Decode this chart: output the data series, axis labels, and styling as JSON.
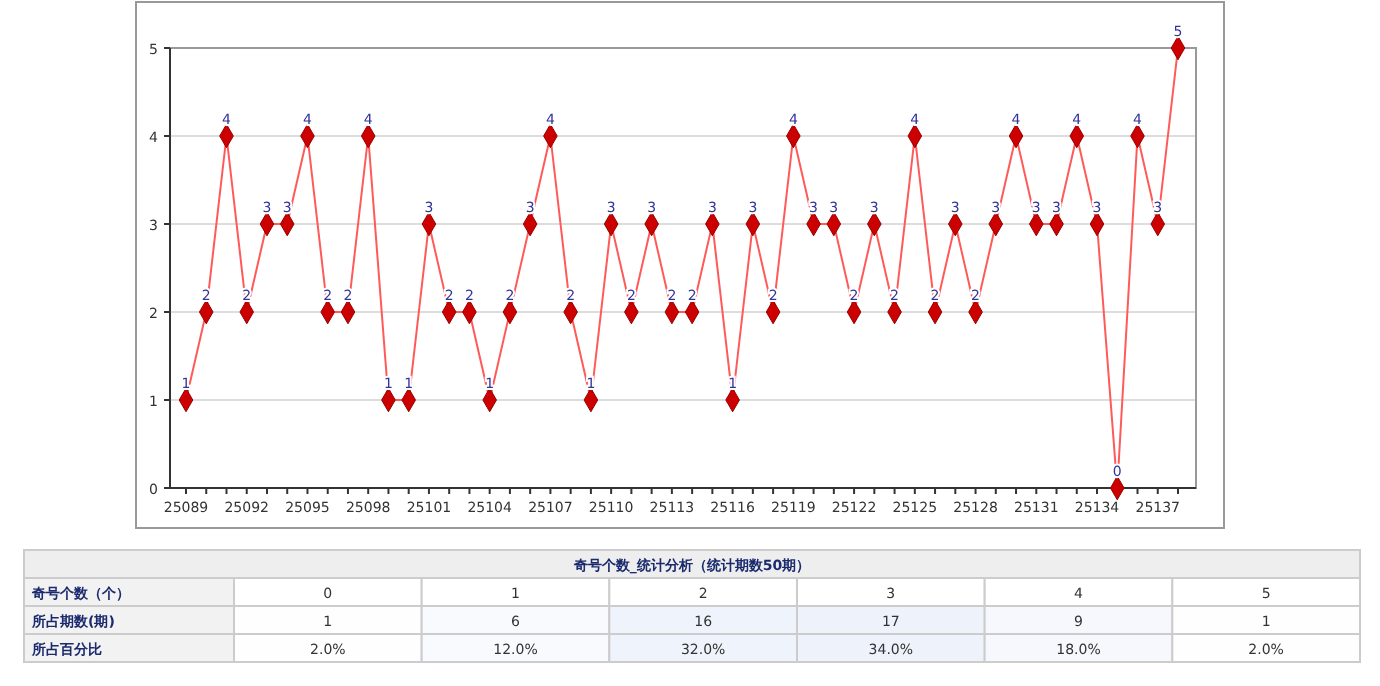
{
  "chart_data": [
    {
      "type": "line",
      "categories": [
        "25089",
        null,
        null,
        "25092",
        null,
        null,
        "25095",
        null,
        null,
        "25098",
        null,
        null,
        "25101",
        null,
        null,
        "25104",
        null,
        null,
        "25107",
        null,
        null,
        "25110",
        null,
        null,
        "25113",
        null,
        null,
        "25116",
        null,
        null,
        "25119",
        null,
        null,
        "25122",
        null,
        null,
        "25125",
        null,
        null,
        "25128",
        null,
        null,
        "25131",
        null,
        null,
        "25134",
        null,
        null,
        "25137",
        null
      ],
      "series": [
        {
          "color": "#ff5a5a",
          "values": [
            1,
            2,
            4,
            2,
            3,
            3,
            4,
            2,
            2,
            4,
            1,
            1,
            3,
            2,
            2,
            1,
            2,
            3,
            4,
            2,
            1,
            3,
            2,
            3,
            2,
            2,
            3,
            1,
            3,
            2,
            4,
            3,
            3,
            2,
            3,
            2,
            4,
            2,
            3,
            2,
            3,
            4,
            3,
            3,
            4,
            3,
            0,
            4,
            3,
            5
          ]
        }
      ],
      "ylim": [
        0,
        5
      ],
      "yticks": [
        0,
        1,
        2,
        3,
        4,
        5
      ],
      "grid": "y",
      "marker": "diamond",
      "data_labels": true
    },
    {
      "type": "heatmap",
      "title": "奇号个数_统计分析（统计期数50期）",
      "xlabel": "奇号个数（个）",
      "categories": [
        "0",
        "1",
        "2",
        "3",
        "4",
        "5"
      ],
      "y_categories": [
        "所占期数(期)",
        "所占百分比"
      ],
      "cells": [
        [
          1,
          6,
          16,
          17,
          9,
          1
        ],
        [
          2.0,
          12.0,
          32.0,
          34.0,
          18.0,
          2.0
        ]
      ],
      "cell_labels": [
        [
          "1",
          "6",
          "16",
          "17",
          "9",
          "1"
        ],
        [
          "2.0%",
          "12.0%",
          "32.0%",
          "34.0%",
          "18.0%",
          "2.0%"
        ]
      ]
    }
  ]
}
